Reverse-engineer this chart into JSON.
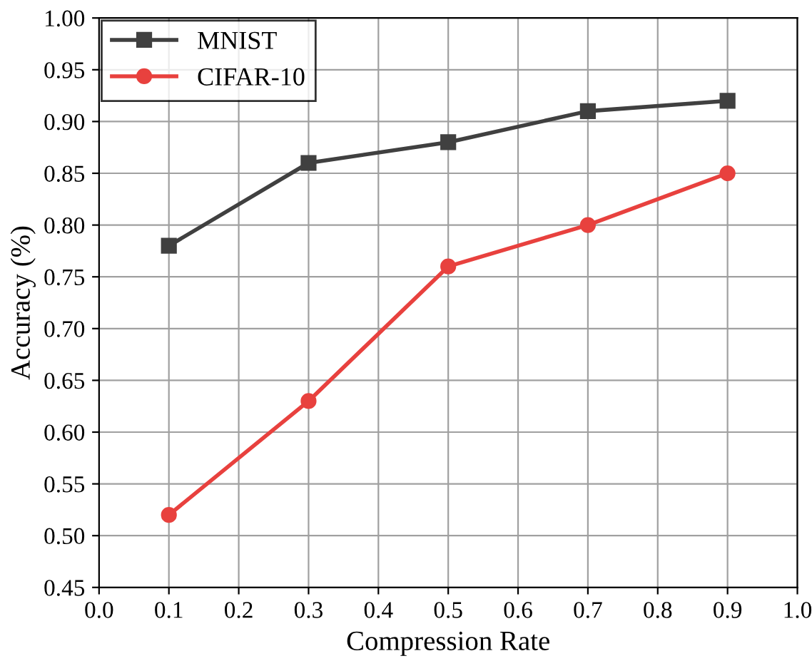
{
  "chart_data": {
    "type": "line",
    "xlabel": "Compression Rate",
    "ylabel": "Accuracy (%)",
    "x": [
      0.1,
      0.3,
      0.5,
      0.7,
      0.9
    ],
    "series": [
      {
        "name": "MNIST",
        "color": "#404040",
        "marker": "square",
        "values": [
          0.78,
          0.86,
          0.88,
          0.91,
          0.92
        ]
      },
      {
        "name": "CIFAR-10",
        "color": "#e8413e",
        "marker": "circle",
        "values": [
          0.52,
          0.63,
          0.76,
          0.8,
          0.85
        ]
      }
    ],
    "xlim": [
      0.0,
      1.0
    ],
    "xticks": [
      {
        "value": 0.0,
        "label": "0.0"
      },
      0.1,
      0.2,
      0.3,
      0.4,
      0.5,
      0.6,
      0.7,
      0.8,
      0.9,
      {
        "value": 1.0,
        "label": "1.0"
      }
    ],
    "ylim": [
      0.45,
      1.0
    ],
    "yticks": [
      0.45,
      {
        "value": 0.5,
        "label": "0.50"
      },
      0.55,
      {
        "value": 0.6,
        "label": "0.60"
      },
      0.65,
      {
        "value": 0.7,
        "label": "0.70"
      },
      0.75,
      {
        "value": 0.8,
        "label": "0.80"
      },
      0.85,
      {
        "value": 0.9,
        "label": "0.90"
      },
      0.95,
      {
        "value": 1.0,
        "label": "1.00"
      }
    ],
    "grid": true,
    "legend": "top left",
    "line_style": "solid"
  }
}
